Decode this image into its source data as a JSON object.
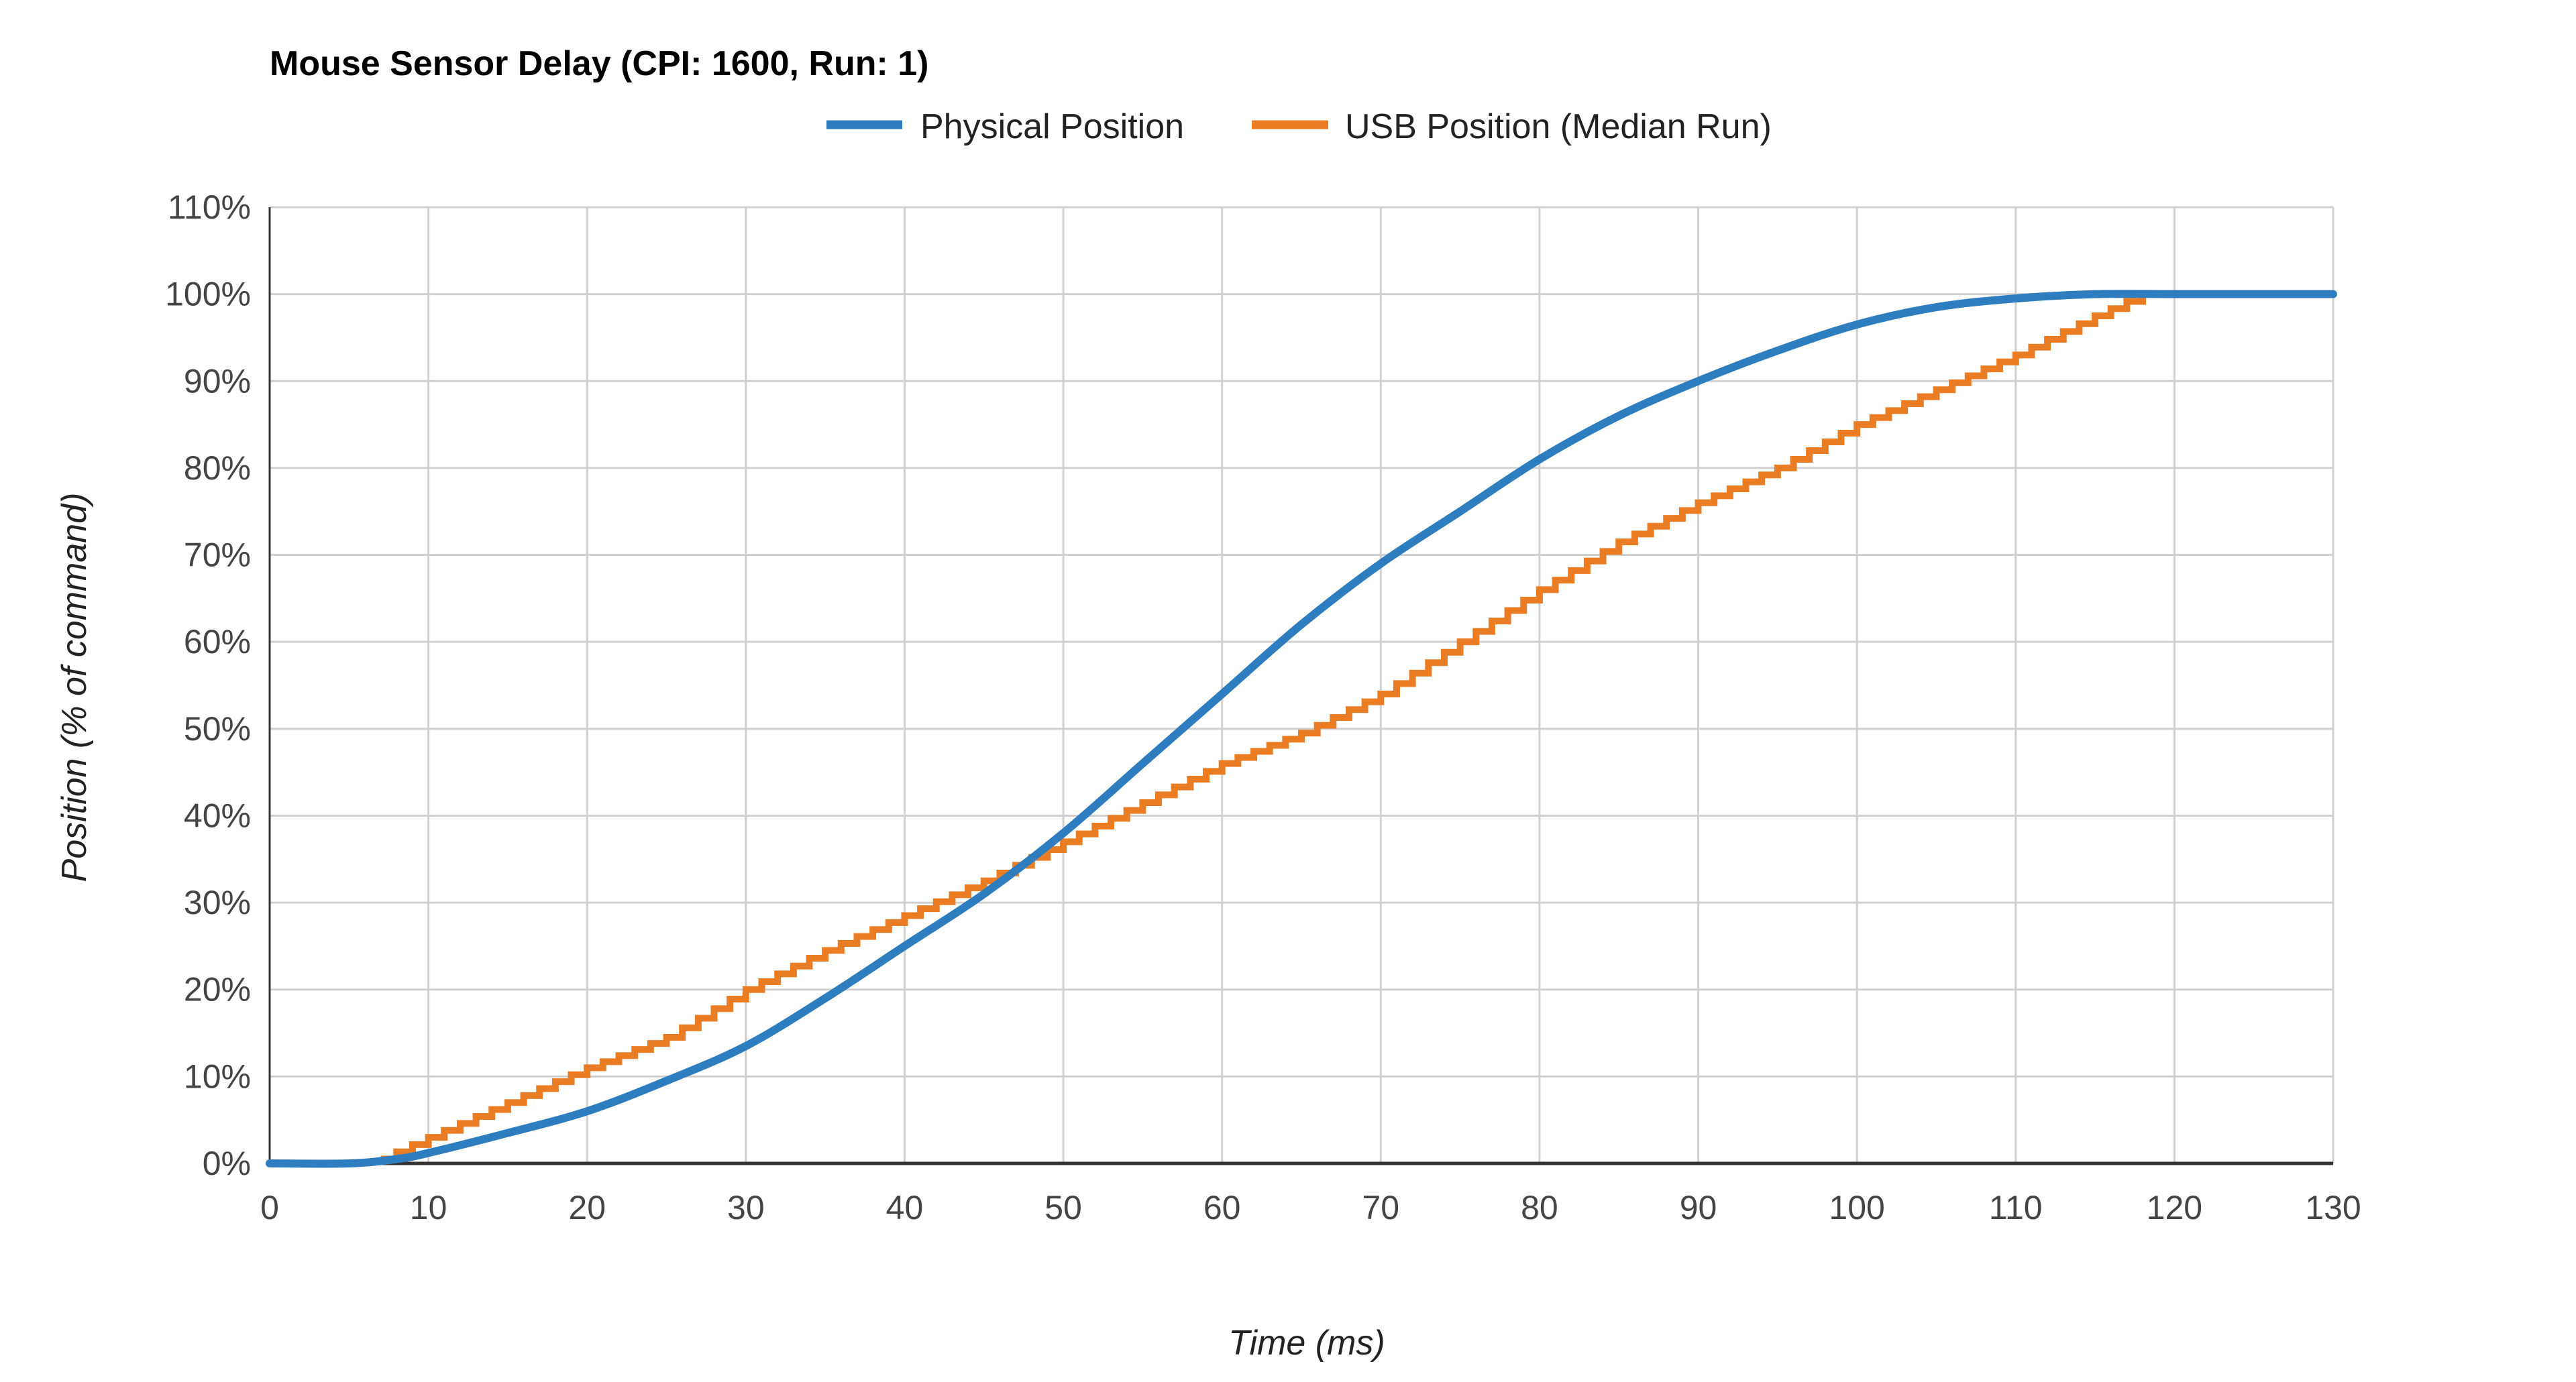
{
  "chart_data": {
    "type": "line",
    "title": "Mouse Sensor Delay (CPI: 1600, Run: 1)",
    "xlabel": "Time (ms)",
    "ylabel": "Position (% of command)",
    "xlim": [
      0,
      130
    ],
    "ylim": [
      0,
      110
    ],
    "xticks": [
      0,
      10,
      20,
      30,
      40,
      50,
      60,
      70,
      80,
      90,
      100,
      110,
      120,
      130
    ],
    "xtick_labels": [
      "0",
      "10",
      "20",
      "30",
      "40",
      "50",
      "60",
      "70",
      "80",
      "90",
      "100",
      "110",
      "120",
      "130"
    ],
    "yticks": [
      0,
      10,
      20,
      30,
      40,
      50,
      60,
      70,
      80,
      90,
      100,
      110
    ],
    "ytick_labels": [
      "0%",
      "10%",
      "20%",
      "30%",
      "40%",
      "50%",
      "60%",
      "70%",
      "80%",
      "90%",
      "100%",
      "110%"
    ],
    "grid": true,
    "legend_position": "top-center",
    "series": [
      {
        "name": "Physical Position",
        "color": "#2e7ebf",
        "style": "smooth",
        "x": [
          0,
          5,
          8,
          10,
          15,
          20,
          25,
          30,
          35,
          40,
          45,
          50,
          55,
          60,
          65,
          70,
          75,
          80,
          85,
          90,
          95,
          100,
          105,
          110,
          115,
          120,
          125,
          130
        ],
        "y": [
          0,
          0,
          0.5,
          1.2,
          3.5,
          6,
          9.5,
          13.5,
          19,
          25,
          31,
          38,
          46,
          54,
          62,
          69,
          75,
          81,
          86,
          90,
          93.5,
          96.5,
          98.5,
          99.5,
          100,
          100,
          100,
          100
        ]
      },
      {
        "name": "USB Position (Median Run)",
        "color": "#ea7d24",
        "style": "step",
        "step_ms": 1,
        "x": [
          7,
          10,
          15,
          20,
          25,
          30,
          35,
          40,
          45,
          50,
          55,
          60,
          65,
          70,
          75,
          80,
          85,
          90,
          95,
          100,
          105,
          110,
          115,
          118
        ],
        "y": [
          0.5,
          3,
          7,
          11,
          14.5,
          20,
          24.5,
          28.5,
          32.5,
          37,
          41.5,
          46,
          49.5,
          54,
          60,
          66,
          71.5,
          76,
          80,
          85,
          89,
          93,
          97.5,
          100
        ]
      }
    ]
  }
}
